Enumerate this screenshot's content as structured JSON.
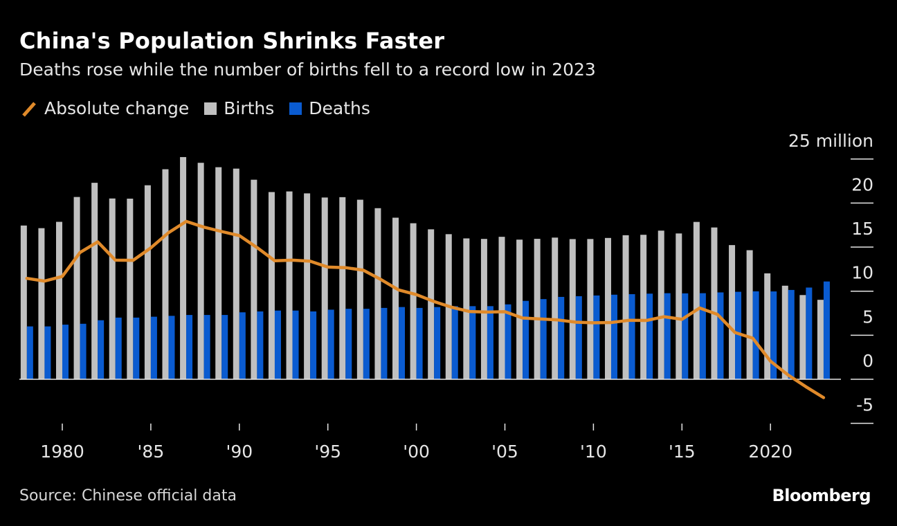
{
  "title": "China's Population Shrinks Faster",
  "subtitle": "Deaths rose while the number of births fell to a record low in 2023",
  "legend": {
    "change": "Absolute change",
    "births": "Births",
    "deaths": "Deaths"
  },
  "source": "Source: Chinese official data",
  "brand": "Bloomberg",
  "colors": {
    "change": "#e08a2a",
    "births": "#c0c0c0",
    "deaths": "#0a5bd0",
    "background": "#000000"
  },
  "chart_data": {
    "type": "bar",
    "title": "China's Population Shrinks Faster",
    "ylabel_unit": "25 million",
    "ylim": [
      -5,
      25
    ],
    "yticks": [
      -5,
      0,
      5,
      10,
      15,
      20,
      25
    ],
    "ytick_labels": [
      "-5",
      "0",
      "5",
      "10",
      "15",
      "20",
      "25 million"
    ],
    "xticks": [
      1980,
      1985,
      1990,
      1995,
      2000,
      2005,
      2010,
      2015,
      2020
    ],
    "xtick_labels": [
      "1980",
      "'85",
      "'90",
      "'95",
      "'00",
      "'05",
      "'10",
      "'15",
      "2020"
    ],
    "grid": false,
    "legend_position": "top-left",
    "x": [
      1978,
      1979,
      1980,
      1981,
      1982,
      1983,
      1984,
      1985,
      1986,
      1987,
      1988,
      1989,
      1990,
      1991,
      1992,
      1993,
      1994,
      1995,
      1996,
      1997,
      1998,
      1999,
      2000,
      2001,
      2002,
      2003,
      2004,
      2005,
      2006,
      2007,
      2008,
      2009,
      2010,
      2011,
      2012,
      2013,
      2014,
      2015,
      2016,
      2017,
      2018,
      2019,
      2020,
      2021,
      2022,
      2023
    ],
    "series": [
      {
        "name": "Births",
        "type": "bar",
        "values": [
          17.45,
          17.15,
          17.87,
          20.69,
          22.3,
          20.52,
          20.5,
          22.02,
          23.84,
          25.22,
          24.57,
          24.07,
          23.91,
          22.65,
          21.25,
          21.32,
          21.1,
          20.63,
          20.67,
          20.38,
          19.42,
          18.34,
          17.71,
          17.02,
          16.47,
          15.99,
          15.93,
          16.17,
          15.85,
          15.94,
          16.08,
          15.91,
          15.92,
          16.04,
          16.35,
          16.4,
          16.87,
          16.55,
          17.86,
          17.23,
          15.23,
          14.65,
          12.02,
          10.62,
          9.56,
          9.02
        ]
      },
      {
        "name": "Deaths",
        "type": "bar",
        "values": [
          6.0,
          6.0,
          6.2,
          6.3,
          6.7,
          7.0,
          7.0,
          7.1,
          7.2,
          7.3,
          7.3,
          7.3,
          7.6,
          7.7,
          7.8,
          7.8,
          7.7,
          7.9,
          8.0,
          8.0,
          8.1,
          8.2,
          8.1,
          8.2,
          8.3,
          8.3,
          8.3,
          8.5,
          8.9,
          9.1,
          9.35,
          9.43,
          9.51,
          9.6,
          9.66,
          9.72,
          9.77,
          9.75,
          9.77,
          9.86,
          9.93,
          9.98,
          9.97,
          10.14,
          10.41,
          11.1
        ]
      },
      {
        "name": "Absolute change",
        "type": "line",
        "values": [
          11.45,
          11.15,
          11.67,
          14.39,
          15.6,
          13.52,
          13.5,
          14.92,
          16.64,
          17.92,
          17.27,
          16.77,
          16.31,
          14.95,
          13.45,
          13.52,
          13.4,
          12.73,
          12.67,
          12.38,
          11.32,
          10.14,
          9.61,
          8.82,
          8.17,
          7.69,
          7.63,
          7.67,
          6.95,
          6.84,
          6.73,
          6.48,
          6.41,
          6.44,
          6.69,
          6.68,
          7.1,
          6.8,
          8.09,
          7.37,
          5.3,
          4.67,
          2.05,
          0.48,
          -0.85,
          -2.08
        ]
      }
    ]
  }
}
